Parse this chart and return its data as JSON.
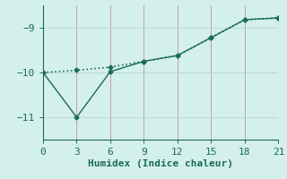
{
  "xlabel": "Humidex (Indice chaleur)",
  "background_color": "#d4f0eb",
  "line_color": "#1a6b5a",
  "grid_color_v": "#c8a0a0",
  "grid_color_h": "#b8d8d0",
  "line1_x": [
    0,
    3,
    6,
    9,
    12,
    15,
    18,
    21
  ],
  "line1_y": [
    -10.0,
    -9.95,
    -9.88,
    -9.75,
    -9.62,
    -9.22,
    -8.82,
    -8.78
  ],
  "line2_x": [
    0,
    3,
    6,
    9,
    12,
    15,
    18,
    21
  ],
  "line2_y": [
    -10.0,
    -11.0,
    -9.98,
    -9.75,
    -9.62,
    -9.22,
    -8.82,
    -8.78
  ],
  "xlim": [
    0,
    21
  ],
  "ylim": [
    -11.5,
    -8.5
  ],
  "xticks": [
    0,
    3,
    6,
    9,
    12,
    15,
    18,
    21
  ],
  "yticks": [
    -11,
    -10,
    -9
  ],
  "tick_fontsize": 8,
  "label_fontsize": 8
}
